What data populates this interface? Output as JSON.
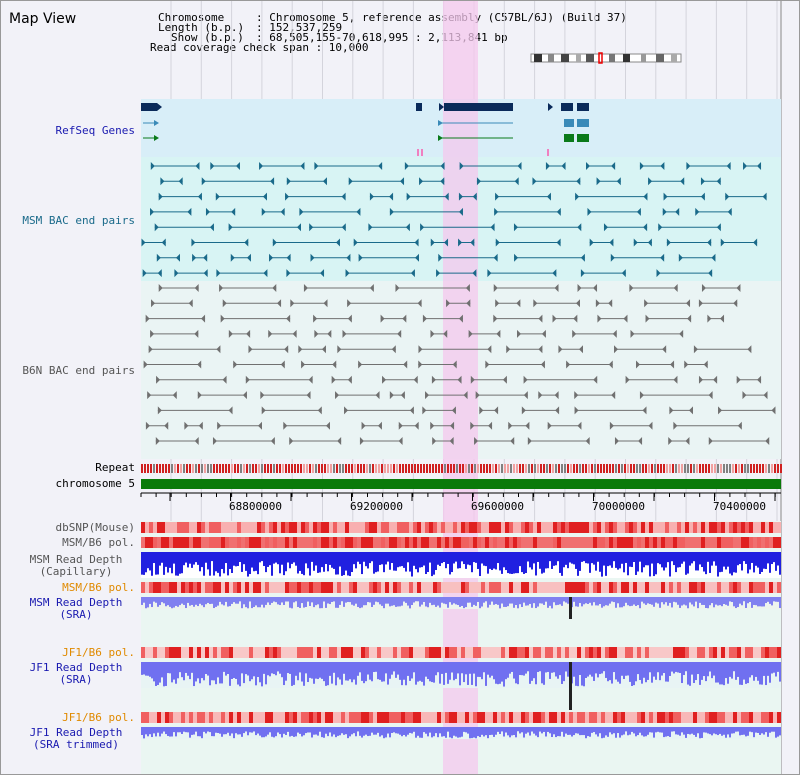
{
  "title": "Map View",
  "header": {
    "line1_key": "Chromosome",
    "line1_val": ": Chromosome 5, reference assembly (C57BL/6J) (Build 37)",
    "line2_key": "Length (b.p.)",
    "line2_val": ": 152,537,259",
    "line3_key": "Show (b.p.)",
    "line3_val": ": 68,505,155-70,618,995 : 2,113,841 bp",
    "line4": "Read coverage check span : 10,000"
  },
  "tracks": {
    "refseq": "RefSeq Genes",
    "msm_bac": "MSM BAC end pairs",
    "b6n_bac": "B6N BAC end pairs",
    "repeat": "Repeat",
    "chromosome": "chromosome 5",
    "dbsnp": "dbSNP(Mouse)",
    "msm_b6_pol_1": "MSM/B6 pol.",
    "msm_read_cap_1": "MSM Read Depth",
    "msm_read_cap_2": "(Capillary)",
    "msm_b6_pol_2": "MSM/B6 pol.",
    "msm_read_sra_1": "MSM Read Depth",
    "msm_read_sra_2": "(SRA)",
    "jf1_b6_pol_1": "JF1/B6 pol.",
    "jf1_read_sra_1": "JF1 Read Depth",
    "jf1_read_sra_2": "(SRA)",
    "jf1_b6_pol_2": "JF1/B6 pol.",
    "jf1_read_trim_1": "JF1 Read Depth",
    "jf1_read_trim_2": "(SRA trimmed)"
  },
  "axis": {
    "ticks": [
      "68800000",
      "69200000",
      "69600000",
      "70000000",
      "70400000"
    ]
  },
  "colors": {
    "highlight": "#f8d8f4",
    "refseq_bg": "#d8eef8",
    "bac_bg": "#d8f4f4",
    "b6n_bg": "#eaf4f4",
    "gene_navy": "#0a2a5a",
    "gene_blue": "#3a8ab8",
    "gene_green": "#0a7a1a",
    "chromosome_bar": "#0a7a0a",
    "depth_blue": "#2020e0",
    "depth_light": "#7070f0",
    "pol_red": "#e83030"
  }
}
